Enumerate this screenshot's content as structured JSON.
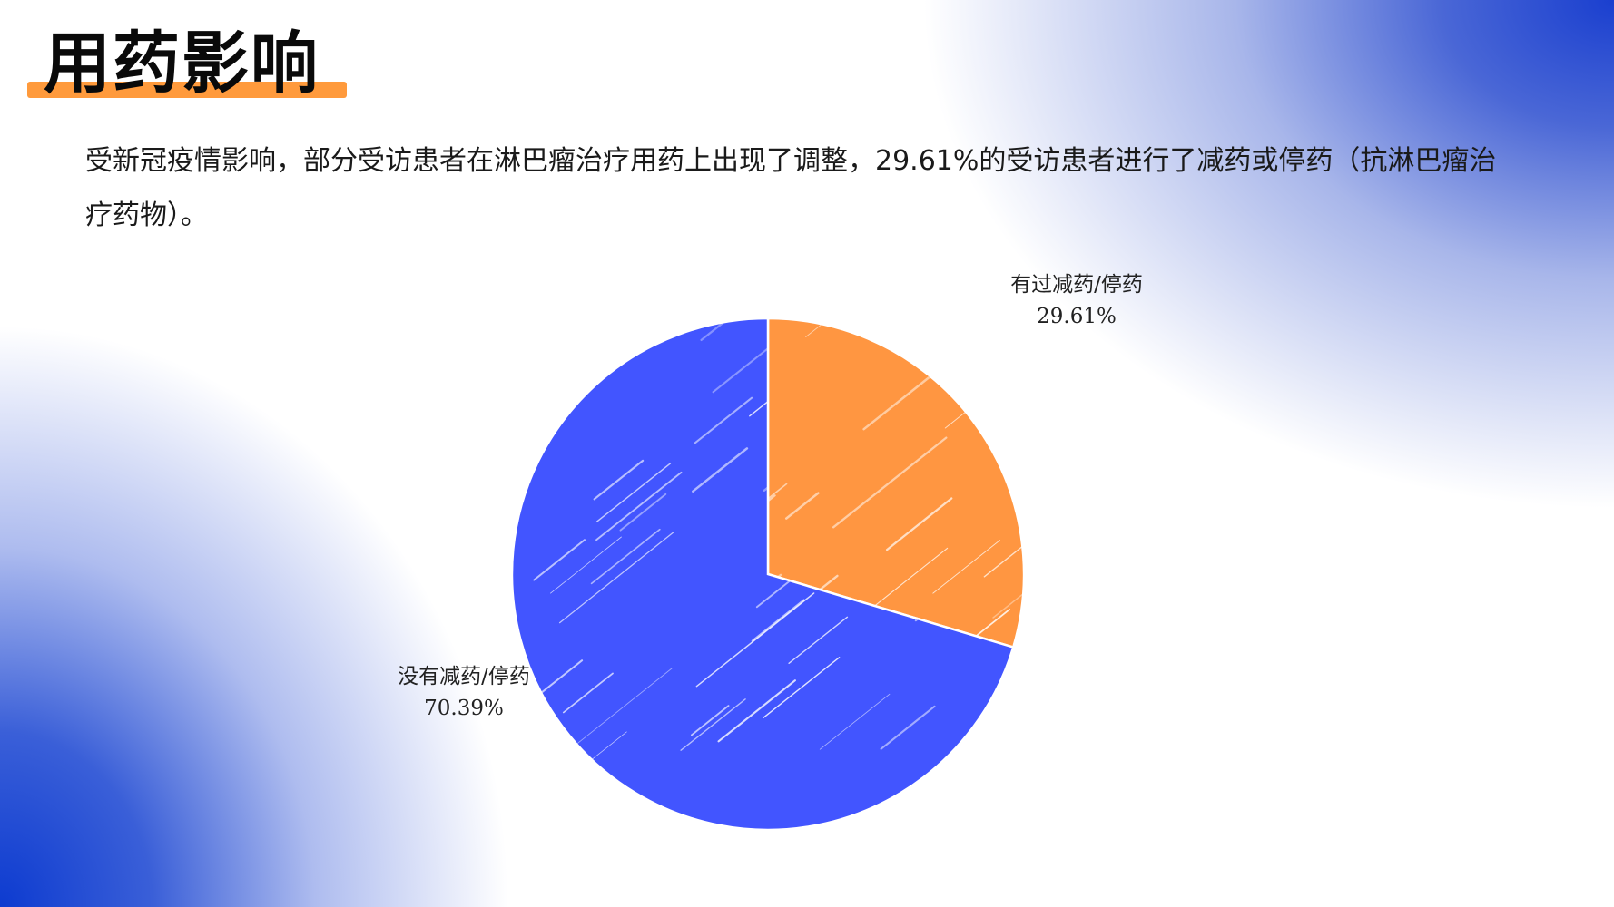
{
  "page": {
    "title": "用药影响",
    "description": "受新冠疫情影响，部分受访患者在淋巴瘤治疗用药上出现了调整，29.61%的受访患者进行了减药或停药（抗淋巴瘤治疗药物）。",
    "colors": {
      "accent": "#ff9a3c",
      "background_gradient": "#1a3fcf"
    }
  },
  "chart_data": {
    "type": "pie",
    "start_angle_deg": 0,
    "direction": "clockwise",
    "style": "hand-drawn hatching",
    "slices": [
      {
        "name": "有过减药/停药",
        "value": 29.61,
        "value_label": "29.61%",
        "color": "#ff9641"
      },
      {
        "name": "没有减药/停药",
        "value": 70.39,
        "value_label": "70.39%",
        "color": "#4255ff"
      }
    ]
  }
}
